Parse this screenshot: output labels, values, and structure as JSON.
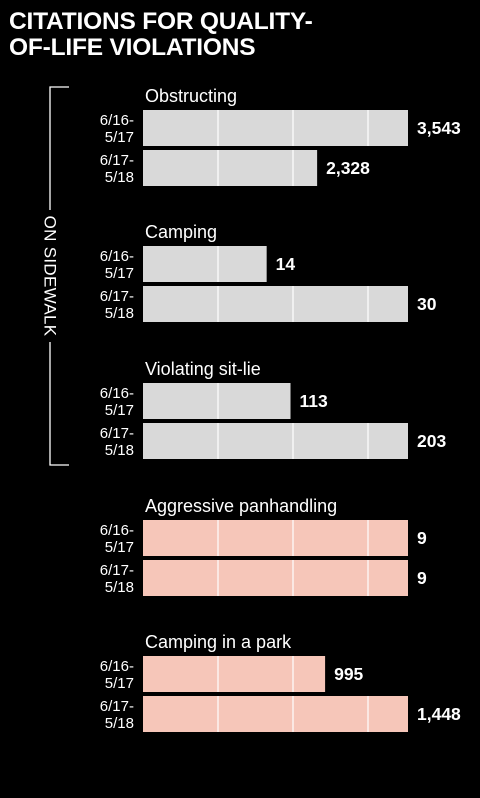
{
  "title_lines": [
    "CITATIONS FOR QUALITY-",
    "OF-LIFE VIOLATIONS"
  ],
  "chart_data": {
    "type": "bar",
    "orientation": "horizontal",
    "periods": [
      "6/16-\n5/17",
      "6/17-\n5/18"
    ],
    "groups": [
      {
        "category": "Obstructing",
        "values": [
          3543,
          2328
        ],
        "labels": [
          "3,543",
          "2,328"
        ],
        "color": "#d9d9d9",
        "scale_max": 3543
      },
      {
        "category": "Camping",
        "values": [
          14,
          30
        ],
        "labels": [
          "14",
          "30"
        ],
        "color": "#d9d9d9",
        "scale_max": 30
      },
      {
        "category": "Violating sit-lie",
        "values": [
          113,
          203
        ],
        "labels": [
          "113",
          "203"
        ],
        "color": "#d9d9d9",
        "scale_max": 203
      },
      {
        "category": "Aggressive panhandling",
        "values": [
          9,
          9
        ],
        "labels": [
          "9",
          "9"
        ],
        "color": "#f6c6b9",
        "scale_max": 9
      },
      {
        "category": "Camping in a park",
        "values": [
          995,
          1448
        ],
        "labels": [
          "995",
          "1,448"
        ],
        "color": "#f6c6b9",
        "scale_max": 1448
      }
    ],
    "bracket": {
      "label": "ON SIDEWALK",
      "spans_categories": [
        "Obstructing",
        "Camping",
        "Violating sit-lie"
      ]
    },
    "gridlines": true
  }
}
